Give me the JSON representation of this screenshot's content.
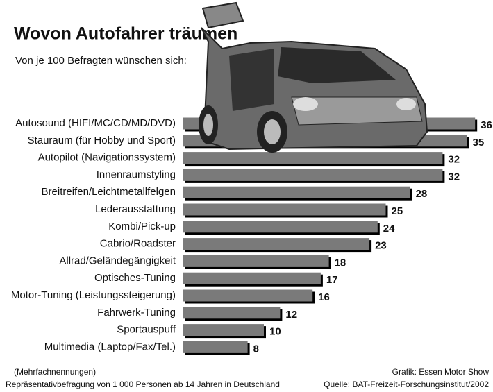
{
  "chart_data": {
    "type": "bar",
    "orientation": "horizontal",
    "title": "Wovon Autofahrer träumen",
    "subtitle": "Von je 100 Befragten wünschen sich:",
    "categories": [
      "Autosound (HIFI/MC/CD/MD/DVD)",
      "Stauraum (für Hobby und Sport)",
      "Autopilot (Navigationssystem)",
      "Innenraumstyling",
      "Breitreifen/Leichtmetallfelgen",
      "Lederausstattung",
      "Kombi/Pick-up",
      "Cabrio/Roadster",
      "Allrad/Geländegängigkeit",
      "Optisches-Tuning",
      "Motor-Tuning (Leistungssteigerung)",
      "Fahrwerk-Tuning",
      "Sportauspuff",
      "Multimedia (Laptop/Fax/Tel.)"
    ],
    "values": [
      36,
      35,
      32,
      32,
      28,
      25,
      24,
      23,
      18,
      17,
      16,
      12,
      10,
      8
    ],
    "color": "#7a7a7a",
    "notes": [
      "(Mehrfachnennungen)",
      "Repräsentativbefragung von 1 000 Personen ab 14 Jahren in Deutschland"
    ],
    "credit": "Grafik: Essen Motor Show",
    "source": "Quelle: BAT-Freizeit-Forschungsinstitut/2002"
  }
}
